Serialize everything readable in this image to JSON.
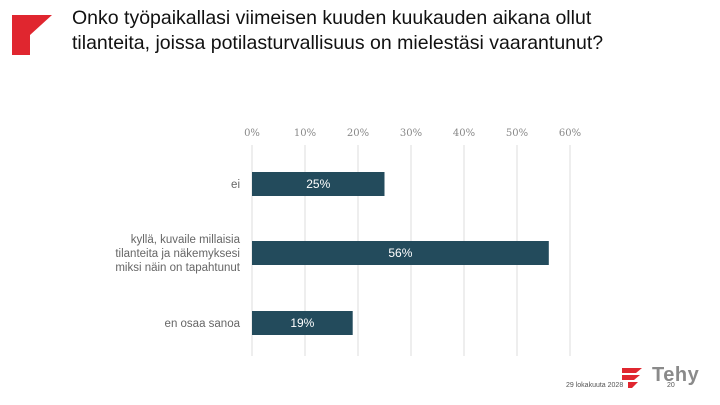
{
  "slide": {
    "title": "Onko työpaikallasi viimeisen kuuden kuukauden aikana ollut tilanteita, joissa potilasturvallisuus on mielestäsi vaarantunut?",
    "footer_date": "29 lokakuuta 2028",
    "page_number": "20",
    "logo_text": "Tehy"
  },
  "colors": {
    "accent": "#e0262f",
    "bar": "#234b5c",
    "grid": "#dddddd",
    "logo_text": "#8a8a8a"
  },
  "chart_data": {
    "type": "bar",
    "orientation": "horizontal",
    "categories": [
      [
        "ei"
      ],
      [
        "kyllä, kuvaile millaisia",
        "tilanteita ja näkemyksesi",
        "miksi näin on tapahtunut"
      ],
      [
        "en osaa sanoa"
      ]
    ],
    "values": [
      25,
      56,
      19
    ],
    "data_labels": [
      "25%",
      "56%",
      "19%"
    ],
    "xlim": [
      0,
      60
    ],
    "xticks": [
      0,
      10,
      20,
      30,
      40,
      50,
      60
    ],
    "xtick_labels": [
      "0%",
      "10%",
      "20%",
      "30%",
      "40%",
      "50%",
      "60%"
    ],
    "grid": true,
    "axis_position": "top"
  }
}
